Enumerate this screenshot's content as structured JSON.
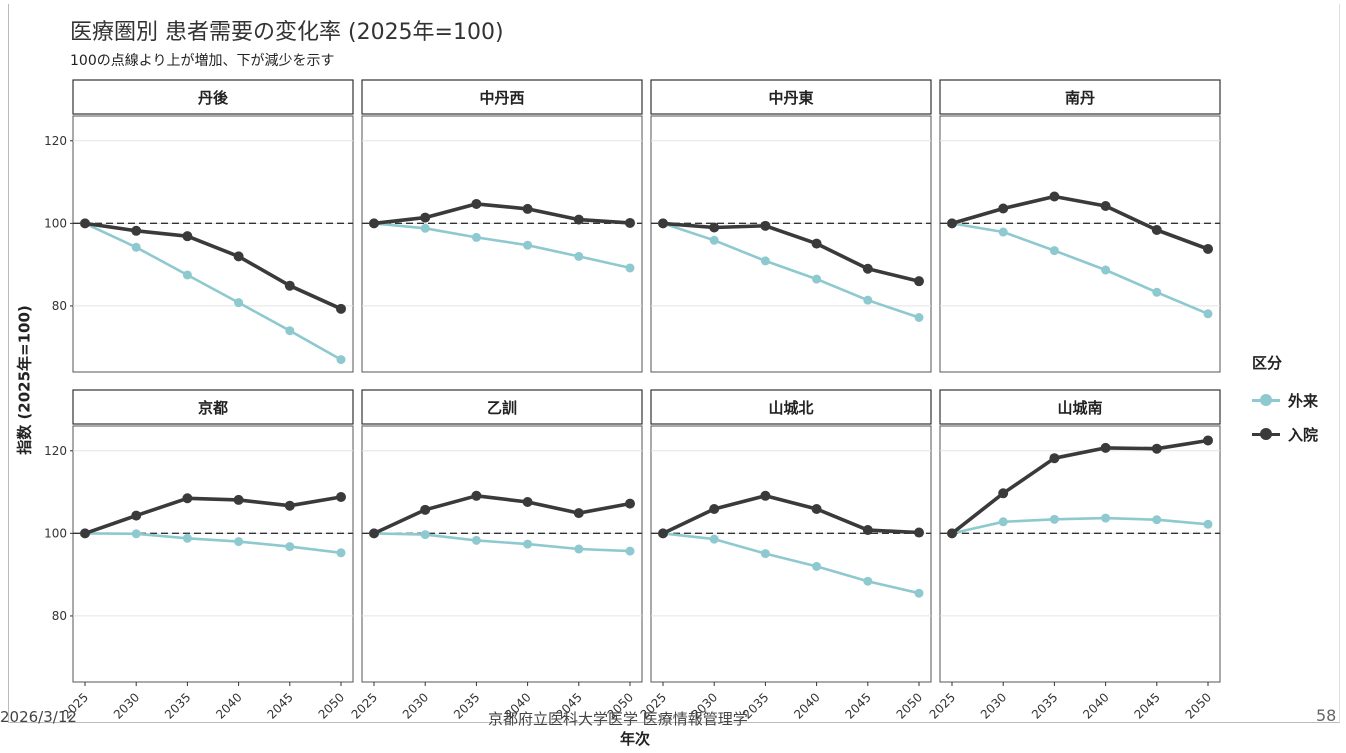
{
  "chart_data": {
    "type": "line",
    "title": "医療圏別 患者需要の変化率 (2025年=100)",
    "subtitle": "100の点線より上が増加、下が減少を示す",
    "xlabel": "年次",
    "ylabel": "指数 (2025年=100)",
    "x": [
      2025,
      2030,
      2035,
      2040,
      2045,
      2050
    ],
    "ylim": [
      64,
      126
    ],
    "yticks": [
      80,
      100,
      120
    ],
    "reference_line": 100,
    "legend": {
      "title": "区分",
      "position": "right",
      "entries": [
        "外来",
        "入院"
      ]
    },
    "colors": {
      "外来": "#8ec9cf",
      "入院": "#3a3a3a"
    },
    "panels": [
      {
        "name": "丹後",
        "series": [
          {
            "name": "外来",
            "values": [
              100,
              94.2,
              87.5,
              80.8,
              74,
              67
            ]
          },
          {
            "name": "入院",
            "values": [
              100,
              98.2,
              96.9,
              92,
              84.9,
              79.3
            ]
          }
        ]
      },
      {
        "name": "中丹西",
        "series": [
          {
            "name": "外来",
            "values": [
              100,
              98.8,
              96.6,
              94.7,
              92,
              89.2
            ]
          },
          {
            "name": "入院",
            "values": [
              100,
              101.4,
              104.7,
              103.5,
              100.9,
              100.1
            ]
          }
        ]
      },
      {
        "name": "中丹東",
        "series": [
          {
            "name": "外来",
            "values": [
              100,
              95.9,
              90.9,
              86.5,
              81.4,
              77.2
            ]
          },
          {
            "name": "入院",
            "values": [
              100,
              99,
              99.4,
              95.1,
              89,
              86
            ]
          }
        ]
      },
      {
        "name": "南丹",
        "series": [
          {
            "name": "外来",
            "values": [
              100,
              97.9,
              93.4,
              88.7,
              83.3,
              78.1
            ]
          },
          {
            "name": "入院",
            "values": [
              100,
              103.6,
              106.5,
              104.2,
              98.4,
              93.8
            ]
          }
        ]
      },
      {
        "name": "京都",
        "series": [
          {
            "name": "外来",
            "values": [
              100,
              99.9,
              98.8,
              98,
              96.8,
              95.3
            ]
          },
          {
            "name": "入院",
            "values": [
              100,
              104.3,
              108.5,
              108.1,
              106.7,
              108.8
            ]
          }
        ]
      },
      {
        "name": "乙訓",
        "series": [
          {
            "name": "外来",
            "values": [
              100,
              99.7,
              98.3,
              97.4,
              96.2,
              95.7
            ]
          },
          {
            "name": "入院",
            "values": [
              100,
              105.7,
              109.1,
              107.6,
              104.9,
              107.2
            ]
          }
        ]
      },
      {
        "name": "山城北",
        "series": [
          {
            "name": "外来",
            "values": [
              100,
              98.6,
              95.1,
              92,
              88.4,
              85.5
            ]
          },
          {
            "name": "入院",
            "values": [
              100,
              105.9,
              109.1,
              105.9,
              100.8,
              100.2
            ]
          }
        ]
      },
      {
        "name": "山城南",
        "series": [
          {
            "name": "外来",
            "values": [
              100,
              102.8,
              103.4,
              103.7,
              103.3,
              102.2
            ]
          },
          {
            "name": "入院",
            "values": [
              100,
              109.7,
              118.2,
              120.7,
              120.5,
              122.5
            ]
          }
        ]
      }
    ]
  },
  "footer": {
    "date": "2026/3/12",
    "organization": "京都府立医科大学医学 医療情報管理学",
    "page_number": "58"
  }
}
